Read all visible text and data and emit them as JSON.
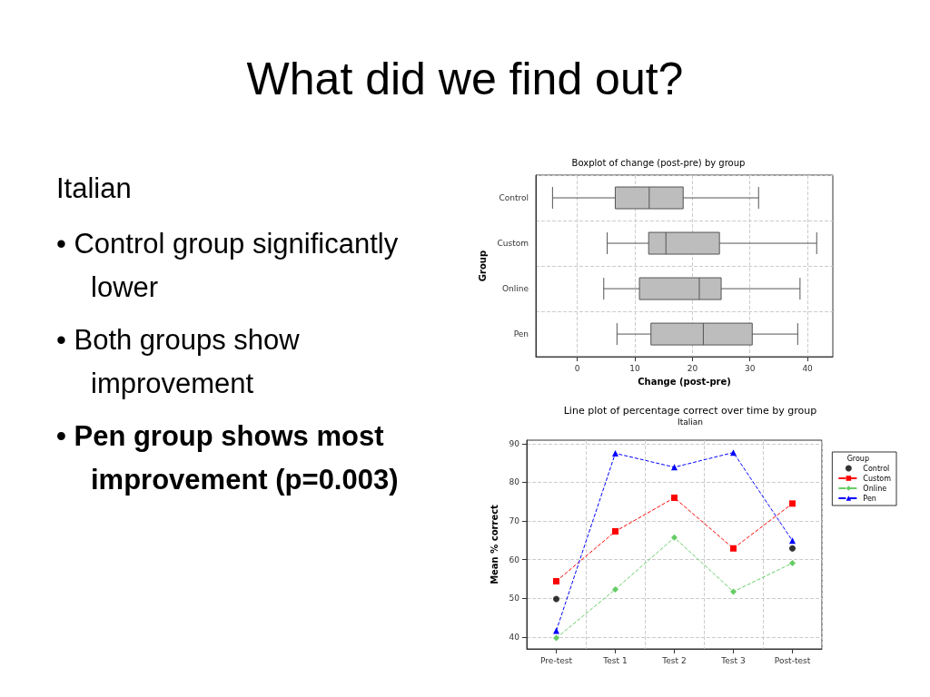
{
  "chart_data": [
    {
      "type": "other",
      "title": "What did we find out?",
      "annotations": [
        "Italian",
        "• Control group significantly lower",
        "• Both groups show improvement",
        "• Pen group shows most improvement (p=0.003)"
      ]
    },
    {
      "type": "box",
      "title": "Boxplot of change (post-pre) by group",
      "xlabel": "Change (post-pre)",
      "ylabel": "Group",
      "orientation": "horizontal",
      "categories": [
        "Control",
        "Custom",
        "Online",
        "Pen"
      ],
      "color": "#bdbdbd",
      "xlim": [
        -7.2,
        44.4
      ],
      "xticks": [
        0,
        10,
        20,
        30,
        40
      ],
      "grid": true,
      "boxes": [
        {
          "low": -4.3,
          "q1": 6.6,
          "median": 12.5,
          "q3": 18.4,
          "high": 31.5
        },
        {
          "low": 5.2,
          "q1": 12.4,
          "median": 15.4,
          "q3": 24.7,
          "high": 41.6
        },
        {
          "low": 4.6,
          "q1": 10.8,
          "median": 21.2,
          "q3": 25.0,
          "high": 38.7
        },
        {
          "low": 6.9,
          "q1": 12.8,
          "median": 21.9,
          "q3": 30.4,
          "high": 38.3
        }
      ]
    },
    {
      "type": "line",
      "title": "Line plot of percentage correct over time by group",
      "subtitle": "Italian",
      "ylabel": "Mean % correct",
      "categories": [
        "Pre-test",
        "Test 1",
        "Test 2",
        "Test 3",
        "Post-test"
      ],
      "ylim": [
        36.9,
        90.9
      ],
      "yticks": [
        40,
        50,
        60,
        70,
        80,
        90
      ],
      "grid": true,
      "legend": "top right",
      "legend_title": "Group",
      "series": [
        {
          "name": "Control",
          "type": "scatter",
          "color": "#000000",
          "marker": "circle",
          "values": [
            49.8,
            null,
            null,
            null,
            62.9
          ]
        },
        {
          "name": "Custom",
          "color": "#ff0000",
          "marker": "square",
          "line_style": "dashed",
          "values": [
            54.4,
            67.3,
            76.0,
            62.9,
            74.5
          ]
        },
        {
          "name": "Online",
          "color": "#66cc66",
          "marker": "diamond",
          "line_style": "dashed",
          "values": [
            39.7,
            52.3,
            65.7,
            51.7,
            59.1
          ]
        },
        {
          "name": "Pen",
          "color": "#0000ff",
          "marker": "triangle",
          "line_style": "dashed",
          "values": [
            41.6,
            87.5,
            83.9,
            87.7,
            64.9
          ]
        }
      ]
    }
  ]
}
